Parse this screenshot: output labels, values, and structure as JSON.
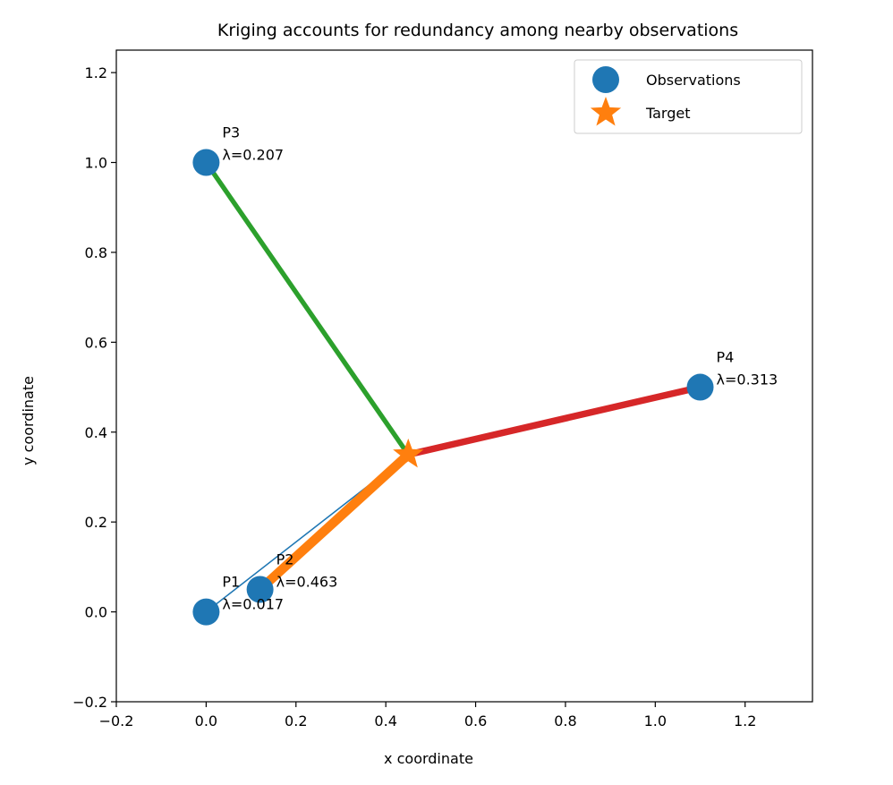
{
  "chart_data": {
    "type": "scatter",
    "title": "Kriging accounts for redundancy among nearby observations",
    "xlabel": "x coordinate",
    "ylabel": "y coordinate",
    "xlim": [
      -0.2,
      1.35
    ],
    "ylim": [
      -0.2,
      1.25
    ],
    "xticks": [
      -0.2,
      0.0,
      0.2,
      0.4,
      0.6,
      0.8,
      1.0,
      1.2
    ],
    "xtick_labels": [
      "−0.2",
      "0.0",
      "0.2",
      "0.4",
      "0.6",
      "0.8",
      "1.0",
      "1.2"
    ],
    "yticks": [
      -0.2,
      0.0,
      0.2,
      0.4,
      0.6,
      0.8,
      1.0,
      1.2
    ],
    "ytick_labels": [
      "−0.2",
      "0.0",
      "0.2",
      "0.4",
      "0.6",
      "0.8",
      "1.0",
      "1.2"
    ],
    "grid": false,
    "legend": {
      "location": "upper right",
      "entries": [
        {
          "label": "Observations",
          "marker": "circle",
          "color": "#1f77b4"
        },
        {
          "label": "Target",
          "marker": "star",
          "color": "#ff7f0e"
        }
      ]
    },
    "target": {
      "x": 0.45,
      "y": 0.35,
      "color": "#ff7f0e"
    },
    "observations": [
      {
        "name": "P1",
        "x": 0.0,
        "y": 0.0,
        "weight": 0.017,
        "label": "λ=0.017",
        "line_color": "#1f77b4"
      },
      {
        "name": "P2",
        "x": 0.12,
        "y": 0.05,
        "weight": 0.463,
        "label": "λ=0.463",
        "line_color": "#ff7f0e"
      },
      {
        "name": "P3",
        "x": 0.0,
        "y": 1.0,
        "weight": 0.207,
        "label": "λ=0.207",
        "line_color": "#2ca02c"
      },
      {
        "name": "P4",
        "x": 1.1,
        "y": 0.5,
        "weight": 0.313,
        "label": "λ=0.313",
        "line_color": "#d62728"
      }
    ],
    "marker_color": "#1f77b4"
  }
}
